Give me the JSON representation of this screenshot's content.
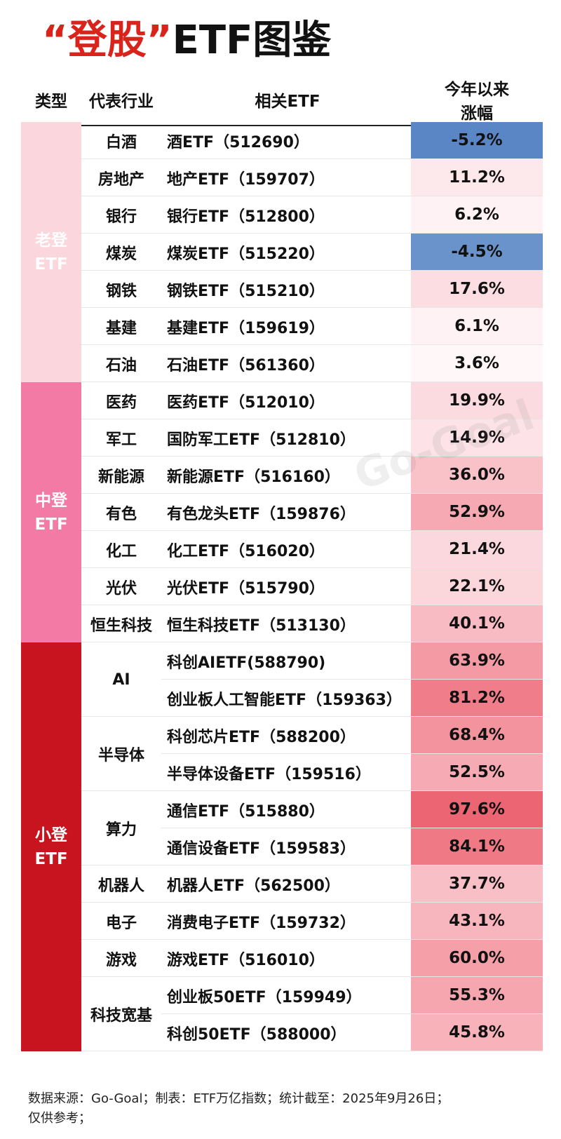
{
  "title": {
    "quoted": "“登股”",
    "rest": "ETF图鉴"
  },
  "headers": {
    "type": "类型",
    "industry": "代表行业",
    "etf": "相关ETF",
    "ytd_line1": "今年以来",
    "ytd_line2": "涨幅"
  },
  "groups": [
    {
      "line1": "老登",
      "line2": "ETF",
      "color": "#fbd6dc",
      "text_color": "#ffffff"
    },
    {
      "line1": "中登",
      "line2": "ETF",
      "color": "#f27aa4",
      "text_color": "#ffffff"
    },
    {
      "line1": "小登",
      "line2": "ETF",
      "color": "#c8141e",
      "text_color": "#ffffff"
    }
  ],
  "rows": [
    {
      "industry": "白酒",
      "etf": "酒ETF（512690）",
      "ytd": "-5.2%",
      "color": "#5b86c6"
    },
    {
      "industry": "房地产",
      "etf": "地产ETF（159707）",
      "ytd": "11.2%",
      "color": "#fde9ec"
    },
    {
      "industry": "银行",
      "etf": "银行ETF（512800）",
      "ytd": "6.2%",
      "color": "#fef2f4"
    },
    {
      "industry": "煤炭",
      "etf": "煤炭ETF（515220）",
      "ytd": "-4.5%",
      "color": "#6a93cc"
    },
    {
      "industry": "钢铁",
      "etf": "钢铁ETF（515210）",
      "ytd": "17.6%",
      "color": "#fcdde2"
    },
    {
      "industry": "基建",
      "etf": "基建ETF（159619）",
      "ytd": "6.1%",
      "color": "#fef2f4"
    },
    {
      "industry": "石油",
      "etf": "石油ETF（561360）",
      "ytd": "3.6%",
      "color": "#fff7f8"
    },
    {
      "industry": "医药",
      "etf": "医药ETF（512010）",
      "ytd": "19.9%",
      "color": "#fcdbe0"
    },
    {
      "industry": "军工",
      "etf": "国防军工ETF（512810）",
      "ytd": "14.9%",
      "color": "#fde3e7"
    },
    {
      "industry": "新能源",
      "etf": "新能源ETF（516160）",
      "ytd": "36.0%",
      "color": "#f9c2c9"
    },
    {
      "industry": "有色",
      "etf": "有色龙头ETF（159876）",
      "ytd": "52.9%",
      "color": "#f6a9b2"
    },
    {
      "industry": "化工",
      "etf": "化工ETF（516020）",
      "ytd": "21.4%",
      "color": "#fbd8dd"
    },
    {
      "industry": "光伏",
      "etf": "光伏ETF（515790）",
      "ytd": "22.1%",
      "color": "#fbd6db"
    },
    {
      "industry": "恒生科技",
      "etf": "恒生科技ETF（513130）",
      "ytd": "40.1%",
      "color": "#f8bbc3"
    },
    {
      "industry": "AI",
      "etf": "科创AIETF(588790)",
      "ytd": "63.9%",
      "color": "#f49aa4"
    },
    {
      "industry": "",
      "etf": "创业板人工智能ETF（159363）",
      "ytd": "81.2%",
      "color": "#f07e8a"
    },
    {
      "industry": "半导体",
      "etf": "科创芯片ETF（588200）",
      "ytd": "68.4%",
      "color": "#f3939e"
    },
    {
      "industry": "",
      "etf": "半导体设备ETF（159516）",
      "ytd": "52.5%",
      "color": "#f6aab3"
    },
    {
      "industry": "算力",
      "etf": "通信ETF（515880）",
      "ytd": "97.6%",
      "color": "#ec6572"
    },
    {
      "industry": "",
      "etf": "通信设备ETF（159583）",
      "ytd": "84.1%",
      "color": "#ef7a86"
    },
    {
      "industry": "机器人",
      "etf": "机器人ETF（562500）",
      "ytd": "37.7%",
      "color": "#f8bfc6"
    },
    {
      "industry": "电子",
      "etf": "消费电子ETF（159732）",
      "ytd": "43.1%",
      "color": "#f7b5bd"
    },
    {
      "industry": "游戏",
      "etf": "游戏ETF（516010）",
      "ytd": "60.0%",
      "color": "#f59fa9"
    },
    {
      "industry": "科技宽基",
      "etf": "创业板50ETF（159949）",
      "ytd": "55.3%",
      "color": "#f6a6af"
    },
    {
      "industry": "",
      "etf": "科创50ETF（588000）",
      "ytd": "45.8%",
      "color": "#f7b2ba"
    }
  ],
  "watermark": "Go-Goal",
  "footer": {
    "line1": "数据来源：Go-Goal；制表：ETF万亿指数；统计截至：2025年9月26日；",
    "line2": "仅供参考；"
  }
}
